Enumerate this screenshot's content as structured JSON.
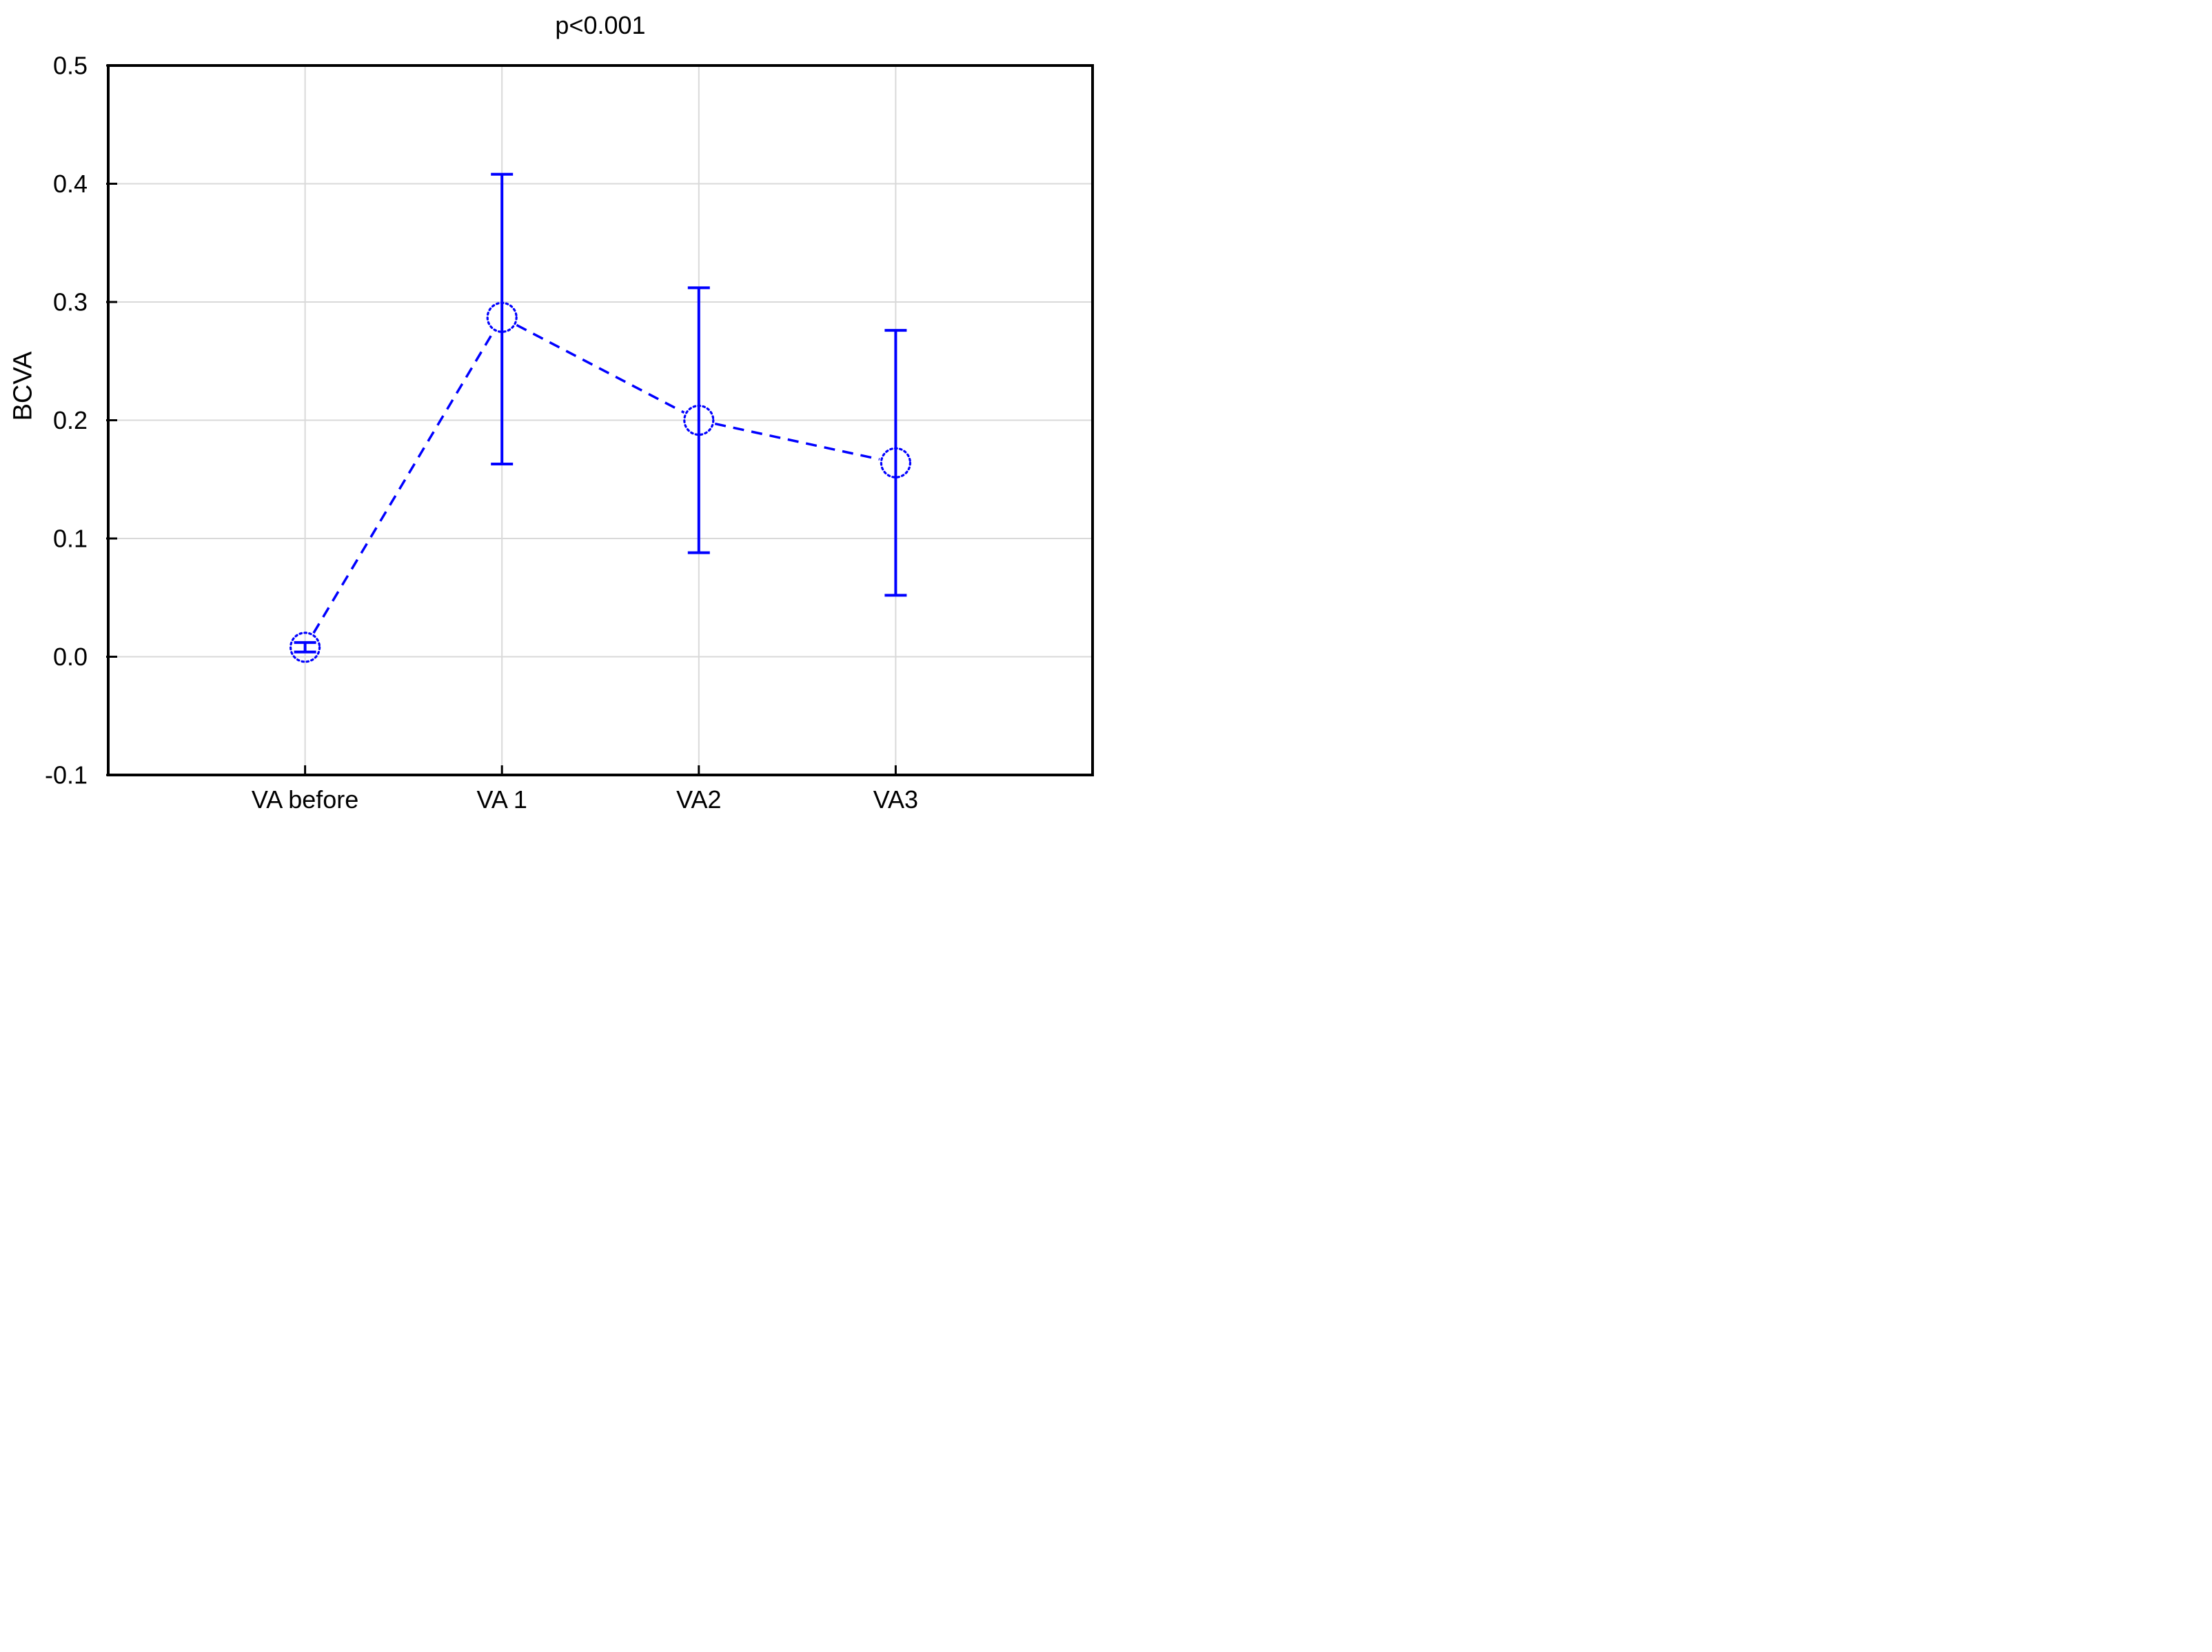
{
  "chart_data": {
    "type": "line",
    "title": "p<0.001",
    "xlabel": "",
    "ylabel": "BCVA",
    "categories": [
      "VA before",
      "VA 1",
      "VA2",
      "VA3"
    ],
    "series": [
      {
        "name": "BCVA",
        "line_style": "dashed",
        "marker": "open-dotted-circle",
        "values": [
          0.008,
          0.287,
          0.2,
          0.164
        ],
        "upper": [
          0.012,
          0.408,
          0.312,
          0.276
        ],
        "lower": [
          0.004,
          0.163,
          0.088,
          0.052
        ]
      }
    ],
    "ylim": [
      -0.1,
      0.5
    ],
    "yticks": [
      {
        "v": 0.5,
        "label": "0.5"
      },
      {
        "v": 0.4,
        "label": "0.4"
      },
      {
        "v": 0.3,
        "label": "0.3"
      },
      {
        "v": 0.2,
        "label": "0.2"
      },
      {
        "v": 0.1,
        "label": "0.1"
      },
      {
        "v": 0.0,
        "label": "0.0"
      },
      {
        "v": -0.1,
        "label": "-0.1"
      }
    ],
    "grid": true,
    "legend": false,
    "colors": {
      "series": "#0000FF",
      "grid": "#D9D9D9",
      "frame": "#000000",
      "text": "#000000"
    }
  }
}
